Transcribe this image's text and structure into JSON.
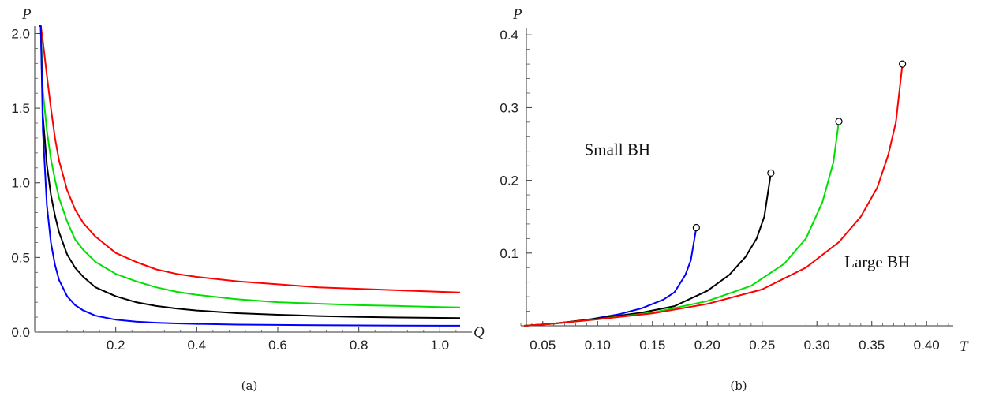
{
  "chart_data": [
    {
      "type": "line",
      "caption": "(a)",
      "xlabel": "Q",
      "ylabel": "P",
      "xlim": [
        0,
        1.05
      ],
      "ylim": [
        0,
        2.05
      ],
      "xticks": [
        0.2,
        0.4,
        0.6,
        0.8,
        1.0
      ],
      "xtick_labels": [
        "0.2",
        "0.4",
        "0.6",
        "0.8",
        "1.0"
      ],
      "yticks": [
        0.0,
        0.5,
        1.0,
        1.5,
        2.0
      ],
      "ytick_labels": [
        "0.0",
        "0.5",
        "1.0",
        "1.5",
        "2.0"
      ],
      "grid": false,
      "legend": "none",
      "series": [
        {
          "color": "#ff0000",
          "x": [
            0.01,
            0.015,
            0.02,
            0.03,
            0.04,
            0.05,
            0.06,
            0.08,
            0.1,
            0.12,
            0.15,
            0.2,
            0.25,
            0.3,
            0.35,
            0.4,
            0.5,
            0.6,
            0.7,
            0.8,
            0.9,
            1.0,
            1.05
          ],
          "y": [
            2.05,
            2.05,
            1.95,
            1.72,
            1.5,
            1.3,
            1.15,
            0.95,
            0.82,
            0.73,
            0.64,
            0.53,
            0.47,
            0.42,
            0.39,
            0.37,
            0.34,
            0.32,
            0.3,
            0.29,
            0.28,
            0.27,
            0.265
          ]
        },
        {
          "color": "#00e000",
          "x": [
            0.01,
            0.015,
            0.02,
            0.03,
            0.04,
            0.05,
            0.06,
            0.08,
            0.1,
            0.12,
            0.15,
            0.2,
            0.25,
            0.3,
            0.35,
            0.4,
            0.5,
            0.6,
            0.7,
            0.8,
            0.9,
            1.0,
            1.05
          ],
          "y": [
            2.05,
            2.05,
            1.62,
            1.35,
            1.16,
            1.02,
            0.9,
            0.74,
            0.62,
            0.55,
            0.47,
            0.39,
            0.34,
            0.3,
            0.27,
            0.25,
            0.22,
            0.2,
            0.19,
            0.18,
            0.175,
            0.168,
            0.165
          ]
        },
        {
          "color": "#000000",
          "x": [
            0.01,
            0.015,
            0.02,
            0.03,
            0.04,
            0.05,
            0.06,
            0.08,
            0.1,
            0.12,
            0.15,
            0.2,
            0.25,
            0.3,
            0.35,
            0.4,
            0.5,
            0.6,
            0.7,
            0.8,
            0.9,
            1.0,
            1.05
          ],
          "y": [
            2.05,
            2.05,
            1.45,
            1.12,
            0.92,
            0.78,
            0.67,
            0.52,
            0.43,
            0.37,
            0.3,
            0.24,
            0.2,
            0.175,
            0.158,
            0.145,
            0.127,
            0.116,
            0.108,
            0.102,
            0.098,
            0.095,
            0.094
          ]
        },
        {
          "color": "#0000ff",
          "x": [
            0.01,
            0.015,
            0.02,
            0.03,
            0.04,
            0.05,
            0.06,
            0.08,
            0.1,
            0.12,
            0.15,
            0.2,
            0.25,
            0.3,
            0.35,
            0.4,
            0.5,
            0.6,
            0.7,
            0.8,
            0.9,
            1.0,
            1.05
          ],
          "y": [
            2.05,
            2.05,
            1.35,
            0.85,
            0.6,
            0.45,
            0.35,
            0.24,
            0.18,
            0.145,
            0.11,
            0.083,
            0.07,
            0.063,
            0.058,
            0.055,
            0.05,
            0.048,
            0.046,
            0.045,
            0.044,
            0.043,
            0.043
          ]
        }
      ]
    },
    {
      "type": "line",
      "caption": "(b)",
      "xlabel": "T",
      "ylabel": "P",
      "xlim": [
        0.03,
        0.42
      ],
      "ylim": [
        0,
        0.41
      ],
      "xticks": [
        0.05,
        0.1,
        0.15,
        0.2,
        0.25,
        0.3,
        0.35,
        0.4
      ],
      "xtick_labels": [
        "0.05",
        "0.10",
        "0.15",
        "0.20",
        "0.25",
        "0.30",
        "0.35",
        "0.40"
      ],
      "yticks": [
        0.1,
        0.2,
        0.3,
        0.4
      ],
      "ytick_labels": [
        "0.1",
        "0.2",
        "0.3",
        "0.4"
      ],
      "grid": false,
      "legend": "none",
      "annotations": [
        {
          "text": "Small BH",
          "x": 0.118,
          "y": 0.235
        },
        {
          "text": "Large BH",
          "x": 0.355,
          "y": 0.08
        }
      ],
      "series": [
        {
          "color": "#0000ff",
          "x": [
            0.033,
            0.06,
            0.09,
            0.12,
            0.14,
            0.16,
            0.17,
            0.18,
            0.185,
            0.19
          ],
          "y": [
            0,
            0.003,
            0.008,
            0.016,
            0.024,
            0.036,
            0.046,
            0.07,
            0.09,
            0.135
          ],
          "critical_point": [
            0.19,
            0.135
          ]
        },
        {
          "color": "#000000",
          "x": [
            0.033,
            0.06,
            0.1,
            0.14,
            0.17,
            0.2,
            0.22,
            0.235,
            0.245,
            0.252,
            0.258
          ],
          "y": [
            0,
            0.003,
            0.01,
            0.018,
            0.027,
            0.048,
            0.07,
            0.095,
            0.12,
            0.15,
            0.21
          ],
          "critical_point": [
            0.258,
            0.21
          ]
        },
        {
          "color": "#00e000",
          "x": [
            0.033,
            0.06,
            0.1,
            0.15,
            0.2,
            0.24,
            0.27,
            0.29,
            0.305,
            0.315,
            0.32
          ],
          "y": [
            0,
            0.003,
            0.009,
            0.018,
            0.034,
            0.055,
            0.085,
            0.12,
            0.17,
            0.225,
            0.281
          ],
          "critical_point": [
            0.32,
            0.281
          ]
        },
        {
          "color": "#ff0000",
          "x": [
            0.033,
            0.06,
            0.1,
            0.15,
            0.2,
            0.25,
            0.29,
            0.32,
            0.34,
            0.355,
            0.365,
            0.372,
            0.378
          ],
          "y": [
            0,
            0.003,
            0.009,
            0.017,
            0.03,
            0.05,
            0.08,
            0.115,
            0.15,
            0.19,
            0.235,
            0.28,
            0.36
          ],
          "critical_point": [
            0.378,
            0.36
          ]
        }
      ]
    }
  ]
}
